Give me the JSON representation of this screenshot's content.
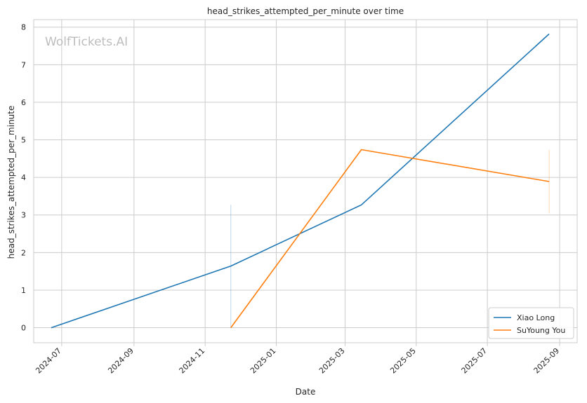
{
  "chart_data": {
    "type": "line",
    "title": "head_strikes_attempted_per_minute over time",
    "xlabel": "Date",
    "ylabel": "head_strikes_attempted_per_minute",
    "watermark": "WolfTickets.AI",
    "x_range": [
      "2024-06-07",
      "2025-09-16"
    ],
    "ylim": [
      -0.4,
      8.2
    ],
    "x_ticks": [
      "2024-07",
      "2024-09",
      "2024-11",
      "2025-01",
      "2025-03",
      "2025-05",
      "2025-07",
      "2025-09"
    ],
    "y_ticks": [
      0,
      1,
      2,
      3,
      4,
      5,
      6,
      7,
      8
    ],
    "grid": true,
    "legend_position": "lower-right",
    "series": [
      {
        "name": "Xiao Long",
        "color": "#1f77b4",
        "points": [
          {
            "x": "2024-06-22",
            "y": 0.0
          },
          {
            "x": "2024-11-23",
            "y": 1.64
          },
          {
            "x": "2025-03-15",
            "y": 3.27
          },
          {
            "x": "2025-08-23",
            "y": 7.82
          }
        ],
        "band": {
          "x": "2024-11-23",
          "y_low": 0.0,
          "y_high": 3.27
        }
      },
      {
        "name": "SuYoung You",
        "color": "#ff7f0e",
        "points": [
          {
            "x": "2024-11-23",
            "y": 0.0
          },
          {
            "x": "2025-03-15",
            "y": 4.74
          },
          {
            "x": "2025-08-23",
            "y": 3.89
          }
        ],
        "band": {
          "x": "2025-08-23",
          "y_low": 3.04,
          "y_high": 4.74
        }
      }
    ]
  }
}
